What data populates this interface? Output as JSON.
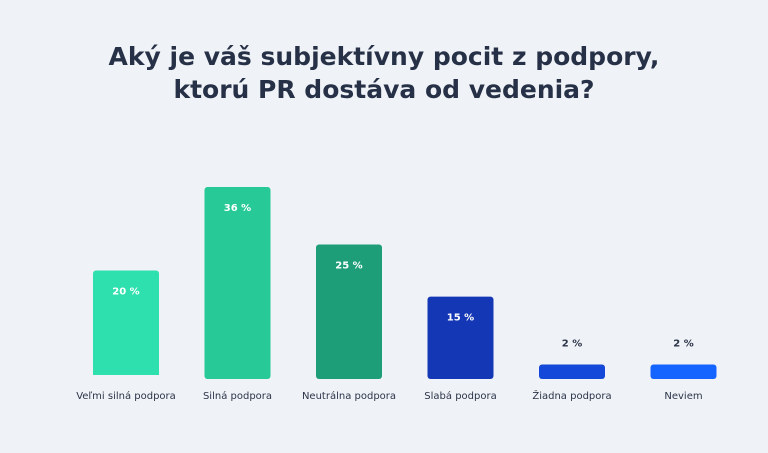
{
  "chart_data": {
    "type": "bar",
    "title": "Aký je váš subjektívny pocit z podpory, ktorú PR dostáva od vedenia?",
    "title_lines": [
      "Aký je váš subjektívny pocit z podpory,",
      "ktorú PR dostáva od vedenia?"
    ],
    "categories": [
      "Veľmi silná podpora",
      "Silná podpora",
      "Neutrálna podpora",
      "Slabá podpora",
      "Žiadna podpora",
      "Neviem"
    ],
    "values": [
      20,
      36,
      25,
      15,
      2,
      2
    ],
    "value_labels": [
      "20 %",
      "36 %",
      "25 %",
      "15 %",
      "2 %",
      "2 %"
    ],
    "colors": [
      "#2de0ad",
      "#27c996",
      "#1d9e78",
      "#1438b5",
      "#1448d8",
      "#1464ff"
    ],
    "xlabel": "",
    "ylabel": "",
    "ylim": [
      0,
      36
    ],
    "grid": false,
    "legend": "none"
  }
}
